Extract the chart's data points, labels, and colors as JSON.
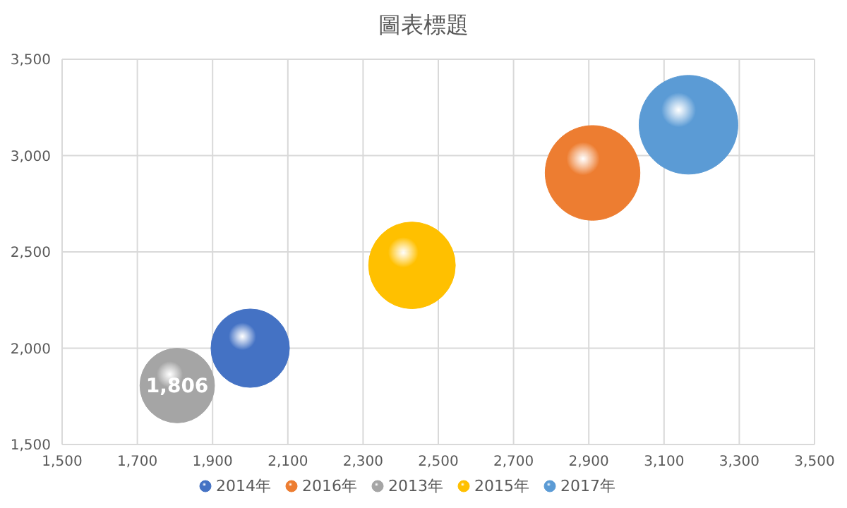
{
  "chart_data": {
    "type": "bubble",
    "title": "圖表標題",
    "series": [
      {
        "name": "2014年",
        "color": "#4472c4",
        "x": [
          2000
        ],
        "values": [
          2000
        ],
        "sizes": [
          0.63
        ]
      },
      {
        "name": "2016年",
        "color": "#ed7d31",
        "x": [
          2910
        ],
        "values": [
          2910
        ],
        "sizes": [
          0.92
        ]
      },
      {
        "name": "2013年",
        "color": "#a5a5a5",
        "x": [
          1806
        ],
        "values": [
          1806
        ],
        "sizes": [
          0.57
        ],
        "value_labels": [
          "1,806"
        ]
      },
      {
        "name": "2015年",
        "color": "#ffc000",
        "x": [
          2430
        ],
        "values": [
          2430
        ],
        "sizes": [
          0.77
        ]
      },
      {
        "name": "2017年",
        "color": "#5b9bd5",
        "x": [
          3165
        ],
        "values": [
          3160
        ],
        "sizes": [
          1
        ]
      }
    ],
    "xlim": [
      1500,
      3500
    ],
    "xticks": [
      {
        "value": 1500,
        "label": "1,500"
      },
      {
        "value": 1700,
        "label": "1,700"
      },
      {
        "value": 1900,
        "label": "1,900"
      },
      {
        "value": 2100,
        "label": "2,100"
      },
      {
        "value": 2300,
        "label": "2,300"
      },
      {
        "value": 2500,
        "label": "2,500"
      },
      {
        "value": 2700,
        "label": "2,700"
      },
      {
        "value": 2900,
        "label": "2,900"
      },
      {
        "value": 3100,
        "label": "3,100"
      },
      {
        "value": 3300,
        "label": "3,300"
      },
      {
        "value": 3500,
        "label": "3,500"
      }
    ],
    "ylim": [
      1500,
      3500
    ],
    "yticks": [
      {
        "value": 1500,
        "label": "1,500"
      },
      {
        "value": 2000,
        "label": "2,000"
      },
      {
        "value": 2500,
        "label": "2,500"
      },
      {
        "value": 3000,
        "label": "3,000"
      },
      {
        "value": 3500,
        "label": "3,500"
      }
    ],
    "grid": true,
    "legend": "bottom"
  }
}
